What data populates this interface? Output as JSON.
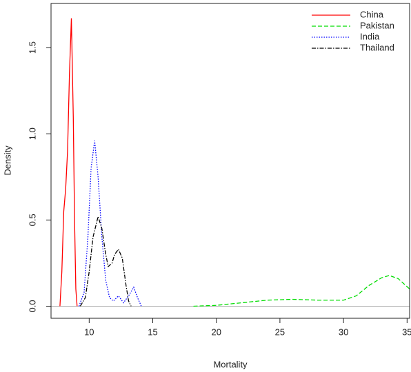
{
  "chart_data": {
    "type": "line",
    "xlabel": "Mortality",
    "ylabel": "Density",
    "xlim": [
      7,
      35.2
    ],
    "ylim": [
      -0.07,
      1.756
    ],
    "xticks": [
      10,
      15,
      20,
      25,
      30,
      35
    ],
    "yticks": [
      {
        "value": 0,
        "label": "0.0"
      },
      {
        "value": 0.5,
        "label": "0.5"
      },
      {
        "value": 1,
        "label": "1.0"
      },
      {
        "value": 1.5,
        "label": "1.5"
      }
    ],
    "zero_line": true,
    "legend": "top-right",
    "series": [
      {
        "name": "China",
        "color": "#ff0000",
        "linestyle": "solid",
        "x": [
          7.7,
          7.85,
          8.0,
          8.15,
          8.3,
          8.45,
          8.6,
          8.75,
          8.85,
          8.95,
          9.05
        ],
        "values": [
          0,
          0.2,
          0.55,
          0.68,
          0.9,
          1.35,
          1.67,
          1.1,
          0.5,
          0.1,
          0
        ]
      },
      {
        "name": "Pakistan",
        "color": "#00dd00",
        "linestyle": "dashed",
        "x": [
          18.2,
          20,
          22,
          24,
          26,
          28,
          30,
          31,
          32,
          33,
          33.6,
          34.3,
          35.2
        ],
        "values": [
          0,
          0.005,
          0.02,
          0.035,
          0.04,
          0.035,
          0.035,
          0.06,
          0.12,
          0.165,
          0.178,
          0.16,
          0.1
        ]
      },
      {
        "name": "India",
        "color": "#0000ff",
        "linestyle": "dotted",
        "x": [
          9.2,
          9.6,
          9.9,
          10.15,
          10.43,
          10.7,
          11.0,
          11.3,
          11.6,
          11.9,
          12.3,
          12.7,
          13.1,
          13.5,
          13.8,
          14.1
        ],
        "values": [
          0,
          0.08,
          0.4,
          0.8,
          0.96,
          0.75,
          0.4,
          0.15,
          0.05,
          0.03,
          0.06,
          0.02,
          0.06,
          0.11,
          0.05,
          0
        ]
      },
      {
        "name": "Thailand",
        "color": "#000000",
        "linestyle": "dotdash",
        "x": [
          9.3,
          9.7,
          10.0,
          10.3,
          10.7,
          11.0,
          11.3,
          11.5,
          11.8,
          12.0,
          12.3,
          12.6,
          12.9,
          13.1,
          13.3
        ],
        "values": [
          0,
          0.05,
          0.2,
          0.4,
          0.52,
          0.45,
          0.3,
          0.23,
          0.25,
          0.3,
          0.33,
          0.28,
          0.12,
          0.03,
          0
        ]
      }
    ]
  }
}
